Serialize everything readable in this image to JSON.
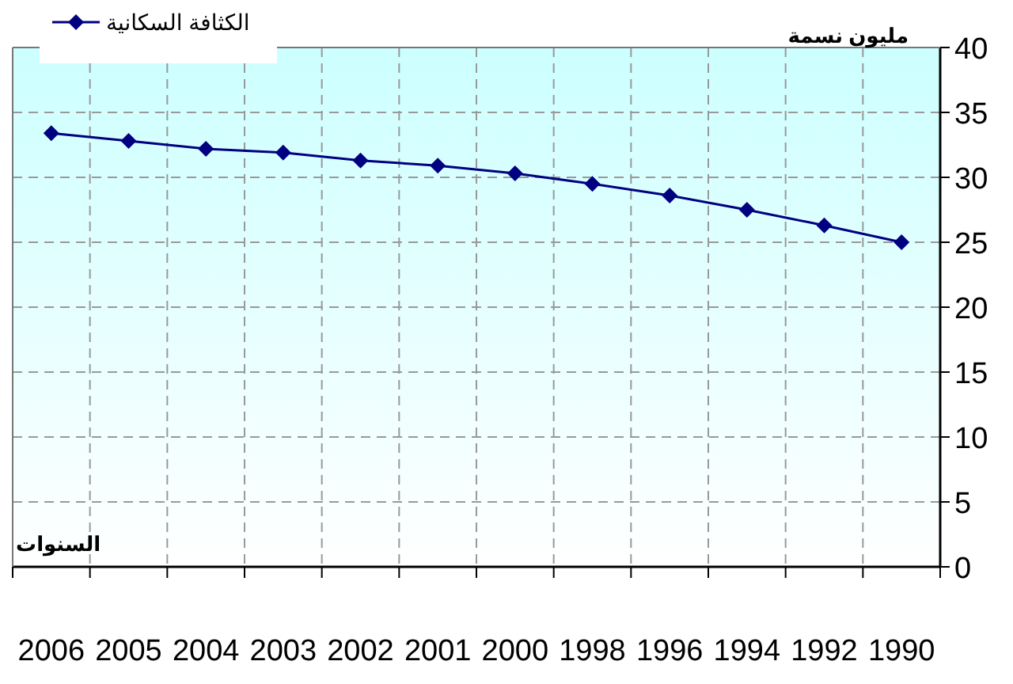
{
  "chart_data": {
    "type": "line",
    "xlabel": "السنوات",
    "ylabel": "مليون نسمة",
    "categories": [
      "2006",
      "2005",
      "2004",
      "2003",
      "2002",
      "2001",
      "2000",
      "1998",
      "1996",
      "1994",
      "1992",
      "1990"
    ],
    "series": [
      {
        "name": "الكثافة السكانية",
        "color": "#000080",
        "values": [
          33.4,
          32.8,
          32.2,
          31.9,
          31.3,
          30.9,
          30.3,
          29.5,
          28.6,
          27.5,
          26.3,
          25.0
        ]
      }
    ],
    "ylim": [
      0,
      40
    ],
    "yticks": [
      0,
      5,
      10,
      15,
      20,
      25,
      30,
      35,
      40
    ],
    "grid": true,
    "legend": "top left",
    "marker": "diamond",
    "line_style": "solid"
  }
}
